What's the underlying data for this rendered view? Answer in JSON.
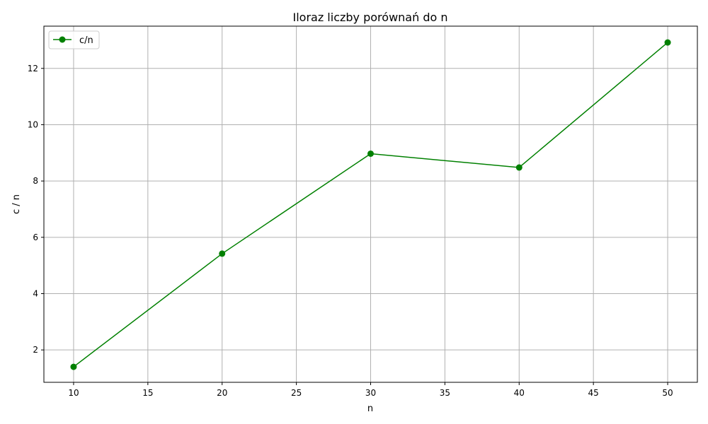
{
  "chart_data": {
    "type": "line",
    "title": "Iloraz liczby porównań do n",
    "xlabel": "n",
    "ylabel": "c / n",
    "x": [
      10,
      20,
      30,
      40,
      50
    ],
    "series": [
      {
        "name": "c/n",
        "values": [
          1.4,
          5.42,
          8.97,
          8.48,
          12.92
        ]
      }
    ],
    "xlim": [
      8,
      52
    ],
    "ylim": [
      0.85,
      13.5
    ],
    "xticks": [
      10,
      15,
      20,
      25,
      30,
      35,
      40,
      45,
      50
    ],
    "yticks": [
      2,
      4,
      6,
      8,
      10,
      12
    ],
    "grid": true,
    "legend_position": "top-left",
    "colors": {
      "series": "#008000",
      "grid": "#b0b0b0",
      "axis": "#000000"
    },
    "marker": "circle"
  }
}
